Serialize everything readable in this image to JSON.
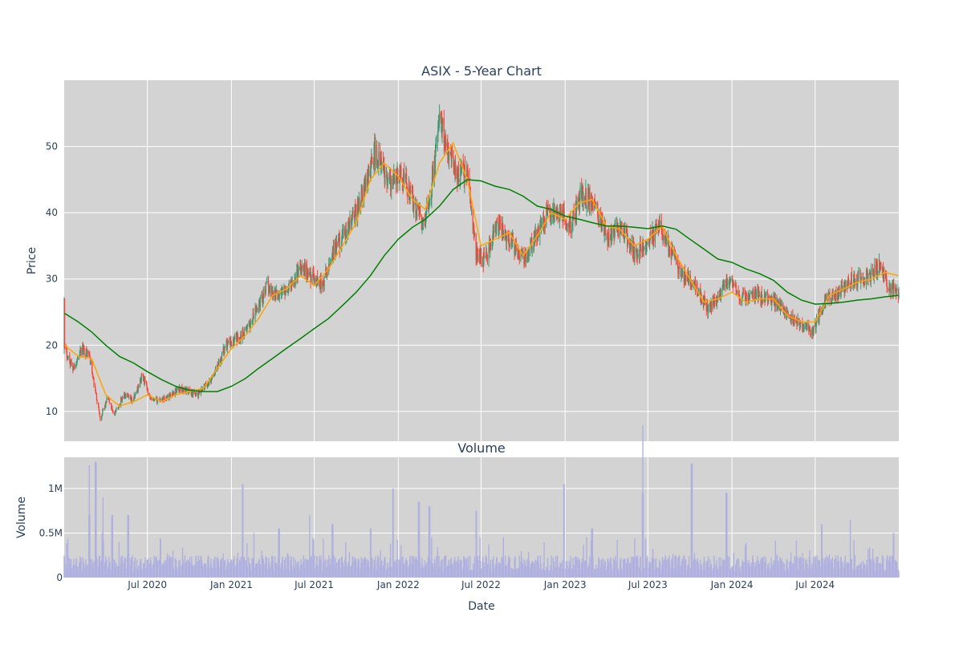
{
  "chart_data": [
    {
      "type": "candlestick",
      "title": "ASIX - 5-Year Chart",
      "ylabel": "Price",
      "ylim": [
        5.5,
        60.0
      ],
      "xlim": [
        "2020-01-01",
        "2024-12-31"
      ],
      "y_ticks": [
        10,
        20,
        30,
        40,
        50
      ],
      "grid": true,
      "colors": {
        "up": "#3d9970",
        "down": "#ff4136",
        "ma_short": "#ffa500",
        "ma_long": "#008000",
        "plot_bg": "#d3d3d3",
        "grid": "#ffffff"
      },
      "series": [
        {
          "kind": "ohlc",
          "key_points": [
            [
              "2020-01-02",
              19.5
            ],
            [
              "2020-01-20",
              16.5
            ],
            [
              "2020-02-10",
              19.5
            ],
            [
              "2020-02-25",
              18.5
            ],
            [
              "2020-03-05",
              14.5
            ],
            [
              "2020-03-20",
              9.0
            ],
            [
              "2020-04-05",
              12.0
            ],
            [
              "2020-04-20",
              9.5
            ],
            [
              "2020-05-10",
              12.5
            ],
            [
              "2020-05-30",
              11.5
            ],
            [
              "2020-06-20",
              15.5
            ],
            [
              "2020-07-10",
              11.5
            ],
            [
              "2020-08-10",
              12.0
            ],
            [
              "2020-09-10",
              13.5
            ],
            [
              "2020-10-20",
              12.5
            ],
            [
              "2020-11-20",
              15.0
            ],
            [
              "2020-12-20",
              20.0
            ],
            [
              "2021-01-15",
              21.0
            ],
            [
              "2021-02-10",
              23.0
            ],
            [
              "2021-03-01",
              26.0
            ],
            [
              "2021-03-20",
              29.0
            ],
            [
              "2021-04-10",
              27.5
            ],
            [
              "2021-05-10",
              29.0
            ],
            [
              "2021-06-01",
              32.0
            ],
            [
              "2021-06-25",
              30.5
            ],
            [
              "2021-07-20",
              29.0
            ],
            [
              "2021-08-10",
              34.0
            ],
            [
              "2021-09-10",
              37.0
            ],
            [
              "2021-10-10",
              42.0
            ],
            [
              "2021-10-25",
              45.0
            ],
            [
              "2021-11-10",
              49.0
            ],
            [
              "2021-11-25",
              47.0
            ],
            [
              "2021-12-15",
              44.0
            ],
            [
              "2022-01-10",
              46.0
            ],
            [
              "2022-02-05",
              41.0
            ],
            [
              "2022-02-25",
              38.0
            ],
            [
              "2022-03-15",
              44.0
            ],
            [
              "2022-04-01",
              54.0
            ],
            [
              "2022-04-20",
              50.0
            ],
            [
              "2022-05-10",
              46.0
            ],
            [
              "2022-06-01",
              46.0
            ],
            [
              "2022-06-20",
              34.0
            ],
            [
              "2022-07-10",
              33.0
            ],
            [
              "2022-08-05",
              38.0
            ],
            [
              "2022-09-01",
              36.0
            ],
            [
              "2022-10-01",
              33.0
            ],
            [
              "2022-10-25",
              36.0
            ],
            [
              "2022-11-25",
              40.0
            ],
            [
              "2022-12-20",
              40.0
            ],
            [
              "2023-01-15",
              38.0
            ],
            [
              "2023-02-05",
              43.0
            ],
            [
              "2023-03-05",
              41.0
            ],
            [
              "2023-04-05",
              36.0
            ],
            [
              "2023-05-01",
              38.0
            ],
            [
              "2023-06-01",
              34.0
            ],
            [
              "2023-06-25",
              35.0
            ],
            [
              "2023-07-25",
              38.0
            ],
            [
              "2023-08-10",
              36.0
            ],
            [
              "2023-09-10",
              31.0
            ],
            [
              "2023-10-10",
              29.0
            ],
            [
              "2023-11-10",
              25.5
            ],
            [
              "2023-12-01",
              27.0
            ],
            [
              "2023-12-25",
              30.0
            ],
            [
              "2024-01-20",
              27.0
            ],
            [
              "2024-02-20",
              27.5
            ],
            [
              "2024-03-20",
              27.0
            ],
            [
              "2024-04-10",
              26.5
            ],
            [
              "2024-05-10",
              24.0
            ],
            [
              "2024-06-01",
              23.0
            ],
            [
              "2024-06-25",
              22.0
            ],
            [
              "2024-07-25",
              27.0
            ],
            [
              "2024-08-20",
              28.0
            ],
            [
              "2024-09-20",
              30.0
            ],
            [
              "2024-10-20",
              30.0
            ],
            [
              "2024-11-20",
              32.0
            ],
            [
              "2024-12-10",
              28.5
            ],
            [
              "2024-12-30",
              28.0
            ]
          ]
        },
        {
          "kind": "line",
          "color": "#ffa500",
          "points": [
            [
              "2020-01-02",
              20.0
            ],
            [
              "2020-02-01",
              18.3
            ],
            [
              "2020-03-01",
              18.0
            ],
            [
              "2020-04-01",
              12.5
            ],
            [
              "2020-05-01",
              10.8
            ],
            [
              "2020-06-01",
              11.5
            ],
            [
              "2020-07-01",
              12.5
            ],
            [
              "2020-08-01",
              11.5
            ],
            [
              "2020-09-01",
              12.5
            ],
            [
              "2020-10-01",
              13.0
            ],
            [
              "2020-11-01",
              13.5
            ],
            [
              "2020-12-01",
              16.5
            ],
            [
              "2021-01-01",
              19.5
            ],
            [
              "2021-02-01",
              21.5
            ],
            [
              "2021-03-01",
              24.0
            ],
            [
              "2021-04-01",
              27.5
            ],
            [
              "2021-05-01",
              28.5
            ],
            [
              "2021-06-01",
              30.5
            ],
            [
              "2021-07-01",
              29.0
            ],
            [
              "2021-08-01",
              31.5
            ],
            [
              "2021-09-01",
              35.0
            ],
            [
              "2021-10-01",
              38.5
            ],
            [
              "2021-11-01",
              45.0
            ],
            [
              "2021-12-01",
              47.5
            ],
            [
              "2022-01-01",
              45.5
            ],
            [
              "2022-02-01",
              42.0
            ],
            [
              "2022-03-01",
              40.5
            ],
            [
              "2022-04-01",
              47.5
            ],
            [
              "2022-05-01",
              50.5
            ],
            [
              "2022-06-01",
              45.0
            ],
            [
              "2022-07-01",
              35.0
            ],
            [
              "2022-08-01",
              36.0
            ],
            [
              "2022-09-01",
              37.0
            ],
            [
              "2022-10-01",
              33.5
            ],
            [
              "2022-11-01",
              36.5
            ],
            [
              "2022-12-01",
              40.0
            ],
            [
              "2023-01-01",
              39.0
            ],
            [
              "2023-02-01",
              41.5
            ],
            [
              "2023-03-01",
              42.0
            ],
            [
              "2023-04-01",
              38.0
            ],
            [
              "2023-05-01",
              37.5
            ],
            [
              "2023-06-01",
              35.0
            ],
            [
              "2023-07-01",
              36.0
            ],
            [
              "2023-08-01",
              38.0
            ],
            [
              "2023-09-01",
              33.5
            ],
            [
              "2023-10-01",
              30.0
            ],
            [
              "2023-11-01",
              26.5
            ],
            [
              "2023-12-01",
              27.0
            ],
            [
              "2024-01-01",
              28.0
            ],
            [
              "2024-02-01",
              26.5
            ],
            [
              "2024-03-01",
              27.0
            ],
            [
              "2024-04-01",
              27.0
            ],
            [
              "2024-05-01",
              24.5
            ],
            [
              "2024-06-01",
              23.5
            ],
            [
              "2024-07-01",
              23.5
            ],
            [
              "2024-08-01",
              27.5
            ],
            [
              "2024-09-01",
              28.5
            ],
            [
              "2024-10-01",
              29.5
            ],
            [
              "2024-11-01",
              30.0
            ],
            [
              "2024-12-01",
              31.0
            ],
            [
              "2024-12-30",
              30.5
            ]
          ]
        },
        {
          "kind": "line",
          "color": "#008000",
          "points": [
            [
              "2020-01-02",
              24.8
            ],
            [
              "2020-02-01",
              23.5
            ],
            [
              "2020-03-01",
              22.0
            ],
            [
              "2020-04-01",
              20.0
            ],
            [
              "2020-05-01",
              18.3
            ],
            [
              "2020-06-01",
              17.3
            ],
            [
              "2020-07-01",
              16.0
            ],
            [
              "2020-08-01",
              14.8
            ],
            [
              "2020-09-01",
              13.8
            ],
            [
              "2020-10-01",
              13.2
            ],
            [
              "2020-11-01",
              13.0
            ],
            [
              "2020-12-01",
              13.0
            ],
            [
              "2021-01-01",
              13.8
            ],
            [
              "2021-02-01",
              15.0
            ],
            [
              "2021-03-01",
              16.5
            ],
            [
              "2021-04-01",
              18.0
            ],
            [
              "2021-05-01",
              19.5
            ],
            [
              "2021-06-01",
              21.0
            ],
            [
              "2021-07-01",
              22.5
            ],
            [
              "2021-08-01",
              24.0
            ],
            [
              "2021-09-01",
              26.0
            ],
            [
              "2021-10-01",
              28.0
            ],
            [
              "2021-11-01",
              30.5
            ],
            [
              "2021-12-01",
              33.5
            ],
            [
              "2022-01-01",
              36.0
            ],
            [
              "2022-02-01",
              37.8
            ],
            [
              "2022-03-01",
              39.0
            ],
            [
              "2022-04-01",
              41.0
            ],
            [
              "2022-05-01",
              43.5
            ],
            [
              "2022-06-01",
              45.0
            ],
            [
              "2022-07-01",
              44.8
            ],
            [
              "2022-08-01",
              44.0
            ],
            [
              "2022-09-01",
              43.5
            ],
            [
              "2022-10-01",
              42.5
            ],
            [
              "2022-11-01",
              41.0
            ],
            [
              "2022-12-01",
              40.5
            ],
            [
              "2023-01-01",
              39.5
            ],
            [
              "2023-02-01",
              39.0
            ],
            [
              "2023-03-01",
              38.5
            ],
            [
              "2023-04-01",
              38.0
            ],
            [
              "2023-05-01",
              38.0
            ],
            [
              "2023-06-01",
              37.8
            ],
            [
              "2023-07-01",
              37.6
            ],
            [
              "2023-08-01",
              38.0
            ],
            [
              "2023-09-01",
              37.5
            ],
            [
              "2023-10-01",
              36.0
            ],
            [
              "2023-11-01",
              34.5
            ],
            [
              "2023-12-01",
              33.0
            ],
            [
              "2024-01-01",
              32.5
            ],
            [
              "2024-02-01",
              31.5
            ],
            [
              "2024-03-01",
              30.8
            ],
            [
              "2024-04-01",
              29.8
            ],
            [
              "2024-05-01",
              28.0
            ],
            [
              "2024-06-01",
              26.8
            ],
            [
              "2024-07-01",
              26.2
            ],
            [
              "2024-08-01",
              26.3
            ],
            [
              "2024-09-01",
              26.5
            ],
            [
              "2024-10-01",
              26.8
            ],
            [
              "2024-11-01",
              27.0
            ],
            [
              "2024-12-01",
              27.3
            ],
            [
              "2024-12-30",
              27.5
            ]
          ]
        }
      ]
    },
    {
      "type": "bar",
      "title": "Volume",
      "ylabel": "Volume",
      "xlabel": "Date",
      "ylim": [
        0,
        1350000
      ],
      "y_ticks": [
        {
          "value": 0,
          "label": "0"
        },
        {
          "value": 500000,
          "label": "0.5M"
        },
        {
          "value": 1000000,
          "label": "1M"
        }
      ],
      "x_ticks": [
        {
          "value": "2020-07-01",
          "label": "Jul 2020"
        },
        {
          "value": "2021-01-01",
          "label": "Jan 2021"
        },
        {
          "value": "2021-07-01",
          "label": "Jul 2021"
        },
        {
          "value": "2022-01-01",
          "label": "Jan 2022"
        },
        {
          "value": "2022-07-01",
          "label": "Jul 2022"
        },
        {
          "value": "2023-01-01",
          "label": "Jan 2023"
        },
        {
          "value": "2023-07-01",
          "label": "Jul 2023"
        },
        {
          "value": "2024-01-01",
          "label": "Jan 2024"
        },
        {
          "value": "2024-07-01",
          "label": "Jul 2024"
        }
      ],
      "color": "#b0b0e0",
      "spikes": [
        [
          "2020-02-25",
          700000
        ],
        [
          "2020-03-10",
          1300000
        ],
        [
          "2020-03-25",
          500000
        ],
        [
          "2020-04-15",
          700000
        ],
        [
          "2020-05-20",
          700000
        ],
        [
          "2021-01-25",
          1050000
        ],
        [
          "2021-02-20",
          500000
        ],
        [
          "2021-04-15",
          550000
        ],
        [
          "2021-06-20",
          700000
        ],
        [
          "2021-08-10",
          600000
        ],
        [
          "2021-11-01",
          550000
        ],
        [
          "2021-12-20",
          1000000
        ],
        [
          "2022-02-15",
          850000
        ],
        [
          "2022-03-10",
          800000
        ],
        [
          "2022-06-20",
          750000
        ],
        [
          "2022-12-30",
          1050000
        ],
        [
          "2023-03-01",
          550000
        ],
        [
          "2023-06-20",
          950000
        ],
        [
          "2023-10-05",
          1280000
        ],
        [
          "2023-12-20",
          950000
        ],
        [
          "2024-07-15",
          600000
        ],
        [
          "2024-09-15",
          650000
        ],
        [
          "2024-12-20",
          500000
        ]
      ],
      "baseline": 180000
    }
  ]
}
